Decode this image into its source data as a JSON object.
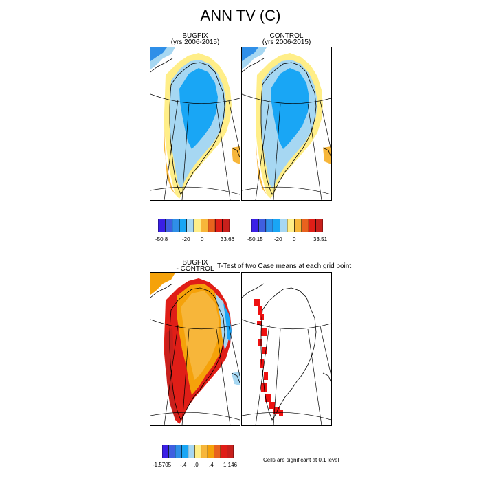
{
  "title": "ANN TV (C)",
  "colors": {
    "field": [
      "#3a1fe6",
      "#3f5fe0",
      "#2f8fe8",
      "#19a6f5",
      "#a6d7f2",
      "#ffee88",
      "#f7b63a",
      "#f5a20a",
      "#e8621e",
      "#e01e17",
      "#c8201c"
    ],
    "ttest_mask": "#ee1111"
  },
  "panels": [
    {
      "id": "bugfix",
      "title_line1": "BUGFIX",
      "title_line2": "(yrs 2006-2015)"
    },
    {
      "id": "control",
      "title_line1": "CONTROL",
      "title_line2": "(yrs 2006-2015)"
    },
    {
      "id": "diff",
      "title_line1": "BUGFIX",
      "title_line2": "- CONTROL"
    },
    {
      "id": "ttest",
      "title": "T-Test of two Case means at each grid point"
    }
  ],
  "legends": [
    {
      "id": "bugfix",
      "labels": [
        "-50.8",
        "-20",
        "0",
        "33.66"
      ]
    },
    {
      "id": "control",
      "labels": [
        "-50.15",
        "-20",
        "0",
        "33.51"
      ]
    },
    {
      "id": "diff",
      "labels": [
        "-1.5705",
        "-.4",
        ".0",
        ".4",
        "1.146"
      ]
    }
  ],
  "note": "Cells are significant at 0.1 level"
}
